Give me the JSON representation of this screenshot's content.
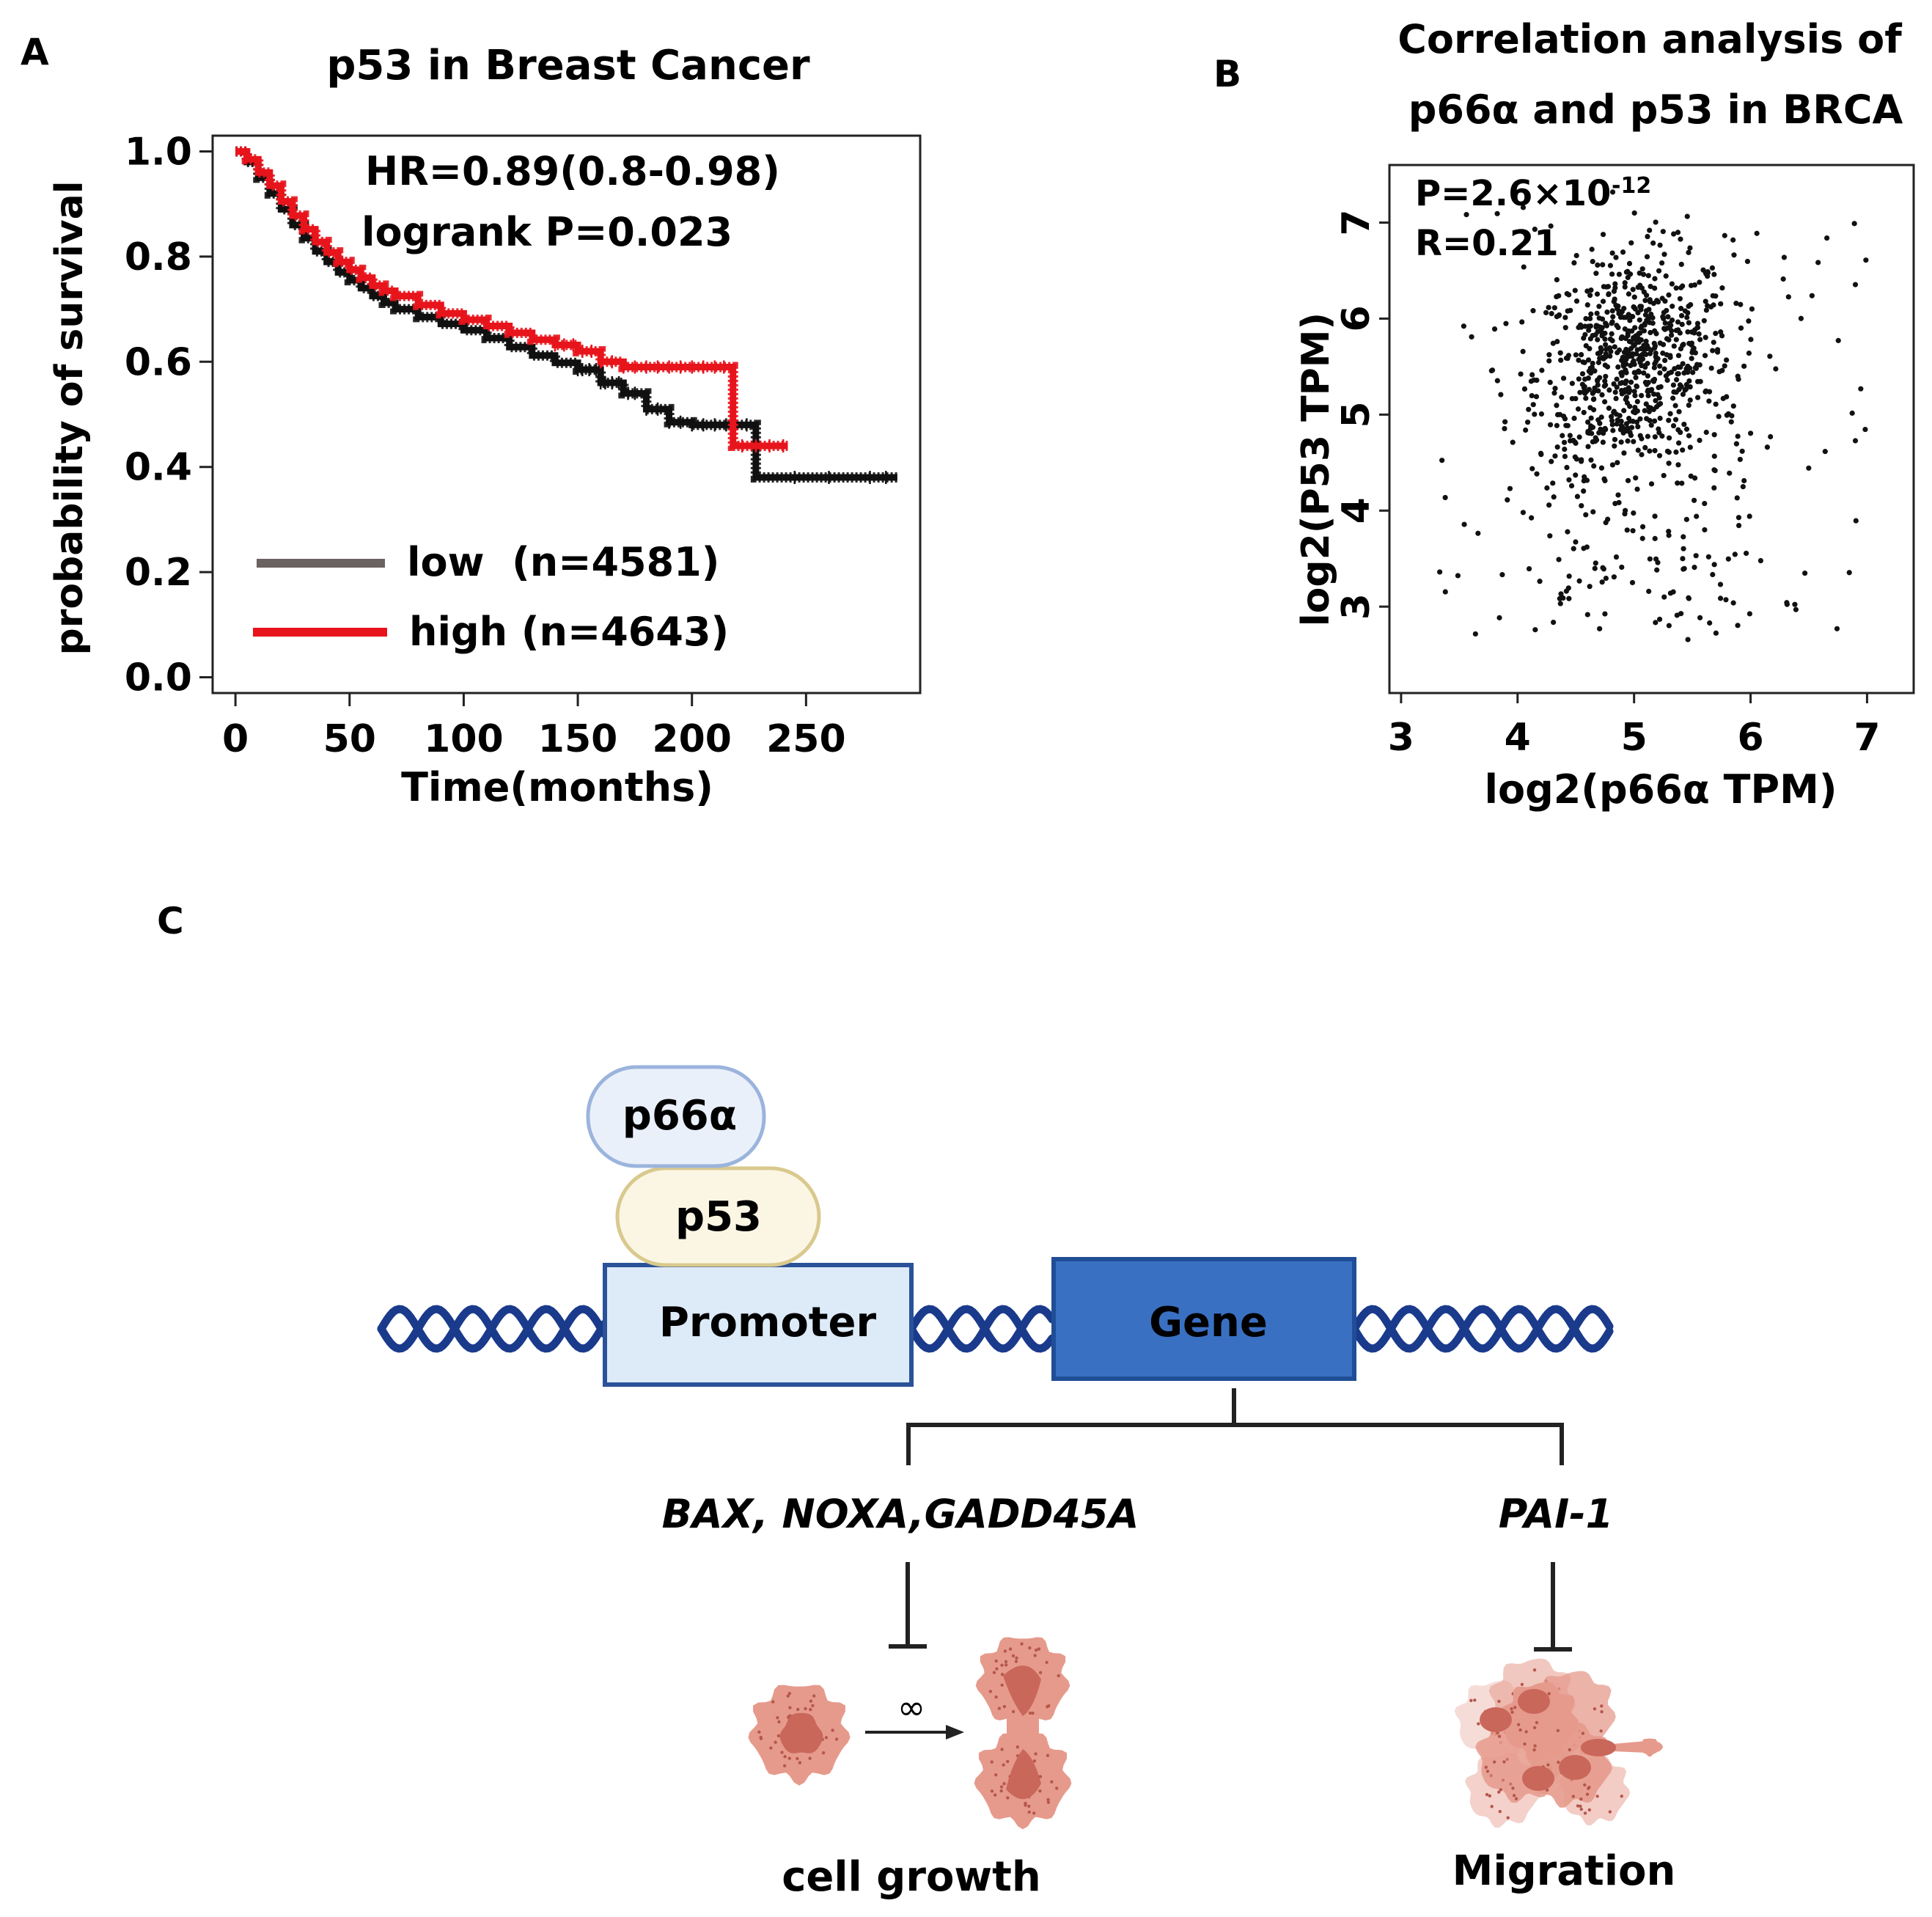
{
  "panels": {
    "a": "A",
    "b": "B",
    "c": "C"
  },
  "chart_data": [
    {
      "type": "line",
      "title": "p53 in Breast Cancer",
      "xlabel": "Time(months)",
      "ylabel": "probability of survival",
      "xlim": [
        -10,
        300
      ],
      "ylim": [
        -0.03,
        1.03
      ],
      "xticks": [
        "0",
        "50",
        "100",
        "150",
        "200",
        "250"
      ],
      "yticks": [
        "0.0",
        "0.2",
        "0.4",
        "0.6",
        "0.8",
        "1.0"
      ],
      "annotations": [
        "HR=0.89(0.8-0.98)",
        "logrank P=0.023"
      ],
      "legend_position": "bottom-left",
      "series": [
        {
          "name": "low",
          "legend": "low  (n=4581)",
          "color": "#111111",
          "legend_color": "#6b6262",
          "x": [
            0,
            5,
            10,
            15,
            20,
            25,
            30,
            35,
            40,
            45,
            50,
            55,
            60,
            65,
            70,
            80,
            90,
            100,
            110,
            120,
            130,
            140,
            150,
            160,
            170,
            180,
            190,
            200,
            210,
            220,
            228,
            228,
            290
          ],
          "y": [
            1.0,
            0.98,
            0.95,
            0.92,
            0.89,
            0.86,
            0.835,
            0.81,
            0.79,
            0.77,
            0.755,
            0.74,
            0.725,
            0.712,
            0.7,
            0.685,
            0.672,
            0.66,
            0.645,
            0.628,
            0.612,
            0.598,
            0.585,
            0.56,
            0.54,
            0.51,
            0.485,
            0.48,
            0.48,
            0.48,
            0.48,
            0.38,
            0.38
          ],
          "censor_x": [
            150,
            152,
            155,
            158,
            160,
            162,
            165,
            168,
            172,
            175,
            180,
            185,
            190,
            195,
            200,
            205,
            210,
            215,
            224,
            245,
            260,
            278,
            285
          ]
        },
        {
          "name": "high",
          "legend": "high (n=4643)",
          "color": "#e8141c",
          "legend_color": "#e8141c",
          "x": [
            0,
            5,
            10,
            15,
            20,
            25,
            30,
            35,
            40,
            45,
            50,
            55,
            60,
            65,
            70,
            80,
            90,
            100,
            110,
            120,
            130,
            140,
            150,
            160,
            170,
            180,
            190,
            200,
            210,
            218,
            218,
            242
          ],
          "y": [
            1.0,
            0.985,
            0.96,
            0.935,
            0.905,
            0.878,
            0.852,
            0.828,
            0.808,
            0.79,
            0.775,
            0.76,
            0.745,
            0.735,
            0.725,
            0.708,
            0.692,
            0.68,
            0.668,
            0.655,
            0.642,
            0.632,
            0.62,
            0.6,
            0.59,
            0.59,
            0.59,
            0.59,
            0.59,
            0.59,
            0.44,
            0.44
          ],
          "censor_x": [
            140,
            144,
            148,
            152,
            156,
            160,
            165,
            170,
            175,
            180,
            185,
            190,
            195,
            200,
            205,
            210,
            214,
            222,
            228,
            234,
            240
          ]
        }
      ]
    },
    {
      "type": "scatter",
      "title": [
        "Correlation analysis of",
        "p66α and p53 in BRCA"
      ],
      "xlabel": "log2(p66α TPM)",
      "ylabel": "log2(P53 TPM)",
      "xlim": [
        2.9,
        7.4
      ],
      "ylim": [
        2.1,
        7.6
      ],
      "xticks": [
        3,
        4,
        5,
        6,
        7
      ],
      "yticks": [
        3,
        4,
        5,
        6,
        7
      ],
      "annotations": [
        "P=2.6×10",
        "-12",
        "R=0.21"
      ],
      "n_points": 950,
      "point_color": "#111111",
      "note": "approx. cloud centered near x≈5.0, y≈5.6 with sparse outliers"
    }
  ],
  "diagram": {
    "proteins": [
      "p66α",
      "p53"
    ],
    "promoter": "Promoter",
    "gene": "Gene",
    "targets_left": "BAX, NOXA,GADD45A",
    "targets_right": "PAI-1",
    "outcome_left": "cell growth",
    "outcome_right": "Migration",
    "infinity": "∞",
    "colors": {
      "dna": "#1a3a8c",
      "promoter_fill": "#ddeaf8",
      "promoter_border": "#2a5298",
      "gene_fill": "#3a70c2",
      "gene_border": "#1f4e96",
      "p66_fill": "#eaf0fa",
      "p66_border": "#9bb4dd",
      "p53_fill": "#fbf6e4",
      "p53_border": "#d9c98e",
      "cell": "#e69a8c",
      "nucleus": "#c9675a"
    }
  }
}
